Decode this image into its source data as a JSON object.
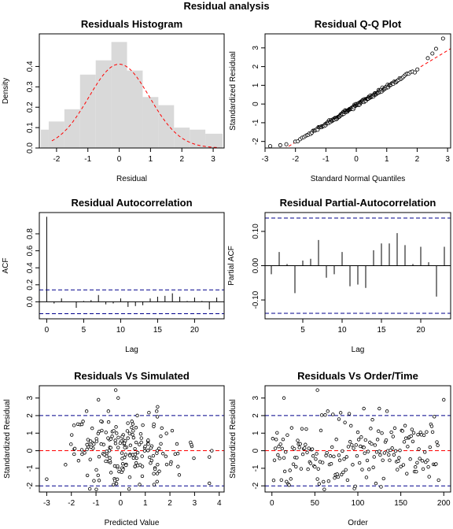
{
  "figure_title": "Residual analysis",
  "chart_data": [
    {
      "id": "hist",
      "type": "bar",
      "title": "Residuals Histogram",
      "xlabel": "Residual",
      "ylabel": "Density",
      "xlim": [
        -2.55,
        3.35
      ],
      "ylim": [
        0,
        0.56
      ],
      "xticks": [
        -2,
        -1,
        0,
        1,
        2,
        3
      ],
      "yticks": [
        0.0,
        0.1,
        0.2,
        0.3,
        0.4
      ],
      "tick_labels_y": [
        "0.0",
        "0.1",
        "0.2",
        "0.3",
        "0.4"
      ],
      "bins": [
        {
          "x0": -2.5,
          "x1": -2.25,
          "v": 0.09
        },
        {
          "x0": -2.25,
          "x1": -1.75,
          "v": 0.13
        },
        {
          "x0": -1.75,
          "x1": -1.25,
          "v": 0.19
        },
        {
          "x0": -1.25,
          "x1": -0.75,
          "v": 0.36
        },
        {
          "x0": -0.75,
          "x1": -0.25,
          "v": 0.43
        },
        {
          "x0": -0.25,
          "x1": 0.25,
          "v": 0.52
        },
        {
          "x0": 0.25,
          "x1": 0.75,
          "v": 0.38
        },
        {
          "x0": 0.75,
          "x1": 1.25,
          "v": 0.25
        },
        {
          "x0": 1.25,
          "x1": 1.75,
          "v": 0.21
        },
        {
          "x0": 1.75,
          "x1": 2.25,
          "v": 0.1
        },
        {
          "x0": 2.25,
          "x1": 2.75,
          "v": 0.09
        },
        {
          "x0": 2.75,
          "x1": 3.3,
          "v": 0.07
        }
      ],
      "density_curve": {
        "mean": 0,
        "sd": 0.97,
        "x_range": [
          -2.15,
          3.2
        ],
        "color": "#ff0000"
      },
      "bar_color": "#d9d9d9"
    },
    {
      "id": "qq",
      "type": "scatter",
      "title": "Residual Q-Q Plot",
      "xlabel": "Standard Normal Quantiles",
      "ylabel": "Standardized Residual",
      "xlim": [
        -3.0,
        3.1
      ],
      "ylim": [
        -2.35,
        3.75
      ],
      "xticks": [
        -3,
        -2,
        -1,
        0,
        1,
        2,
        3
      ],
      "yticks": [
        -2,
        -1,
        0,
        1,
        2,
        3
      ],
      "n_points": 200,
      "reference_line": {
        "intercept": -0.08,
        "slope": 0.98,
        "color": "#ff0000"
      },
      "tail_points": [
        [
          -2.83,
          -2.25
        ],
        [
          -2.5,
          -2.2
        ],
        [
          -2.3,
          -2.15
        ],
        [
          2.35,
          2.45
        ],
        [
          2.5,
          2.7
        ],
        [
          2.62,
          2.95
        ],
        [
          2.85,
          3.5
        ]
      ]
    },
    {
      "id": "acf",
      "type": "bar",
      "title": "Residual Autocorrelation",
      "xlabel": "Lag",
      "ylabel": "ACF",
      "xlim": [
        -1,
        24
      ],
      "ylim": [
        -0.2,
        1.05
      ],
      "xticks": [
        0,
        5,
        10,
        15,
        20
      ],
      "yticks": [
        0.0,
        0.2,
        0.4,
        0.6,
        0.8
      ],
      "tick_labels_y": [
        "0.0",
        "0.2",
        "0.4",
        "0.6",
        "0.8"
      ],
      "lags": [
        0,
        1,
        2,
        3,
        4,
        5,
        6,
        7,
        8,
        9,
        10,
        11,
        12,
        13,
        14,
        15,
        16,
        17,
        18,
        19,
        20,
        21,
        22,
        23
      ],
      "values": [
        1.0,
        -0.02,
        0.04,
        0.0,
        -0.07,
        0.01,
        0.02,
        0.08,
        -0.03,
        -0.02,
        0.04,
        -0.06,
        -0.05,
        -0.04,
        0.04,
        0.06,
        0.07,
        0.1,
        0.06,
        0.01,
        0.05,
        0.01,
        -0.09,
        0.05
      ],
      "ci": 0.14,
      "ci_color": "#00008b"
    },
    {
      "id": "pacf",
      "type": "bar",
      "title": "Residual Partial-Autocorrelation",
      "xlabel": "Lag",
      "ylabel": "Partial ACF",
      "xlim": [
        0.2,
        23.8
      ],
      "ylim": [
        -0.155,
        0.155
      ],
      "xticks": [
        5,
        10,
        15,
        20
      ],
      "yticks": [
        -0.1,
        0.0,
        0.1
      ],
      "tick_labels_y": [
        "-0.10",
        "0.00",
        "0.10"
      ],
      "lags": [
        1,
        2,
        3,
        4,
        5,
        6,
        7,
        8,
        9,
        10,
        11,
        12,
        13,
        14,
        15,
        16,
        17,
        18,
        19,
        20,
        21,
        22,
        23
      ],
      "values": [
        -0.025,
        0.04,
        0.005,
        -0.08,
        0.015,
        0.02,
        0.075,
        -0.035,
        -0.025,
        0.04,
        -0.06,
        -0.055,
        -0.065,
        0.045,
        0.065,
        0.065,
        0.095,
        0.06,
        0.005,
        0.055,
        0.01,
        -0.09,
        0.055
      ],
      "ci": 0.139,
      "ci_color": "#00008b"
    },
    {
      "id": "rvs",
      "type": "scatter",
      "title": "Residuals Vs Simulated",
      "xlabel": "Predicted Value",
      "ylabel": "Standardized Residual",
      "xlim": [
        -3.3,
        4.2
      ],
      "ylim": [
        -2.35,
        3.7
      ],
      "xticks": [
        -3,
        -2,
        -1,
        0,
        1,
        2,
        3,
        4
      ],
      "yticks": [
        -2,
        -1,
        0,
        1,
        2,
        3
      ],
      "hlines": [
        {
          "y": 2,
          "color": "#00008b"
        },
        {
          "y": 0,
          "color": "#ff0000"
        },
        {
          "y": -2,
          "color": "#00008b"
        }
      ],
      "n_points": 200,
      "highlight_points": [
        [
          -0.2,
          3.45
        ],
        [
          -0.9,
          2.9
        ],
        [
          -0.1,
          3.0
        ],
        [
          1.5,
          2.5
        ],
        [
          3.7,
          0.0
        ]
      ]
    },
    {
      "id": "rvo",
      "type": "scatter",
      "title": "Residuals Vs Order/Time",
      "xlabel": "Order",
      "ylabel": "Standardized Residual",
      "xlim": [
        -8,
        208
      ],
      "ylim": [
        -2.35,
        3.7
      ],
      "xticks": [
        0,
        50,
        100,
        150,
        200
      ],
      "yticks": [
        -2,
        -1,
        0,
        1,
        2,
        3
      ],
      "hlines": [
        {
          "y": 2,
          "color": "#00008b"
        },
        {
          "y": 0,
          "color": "#ff0000"
        },
        {
          "y": -2,
          "color": "#00008b"
        }
      ],
      "n_points": 200,
      "highlight_points": [
        [
          53,
          3.45
        ],
        [
          14,
          3.0
        ],
        [
          200,
          2.9
        ],
        [
          107,
          2.4
        ],
        [
          125,
          2.4
        ],
        [
          78,
          1.8
        ]
      ]
    }
  ]
}
